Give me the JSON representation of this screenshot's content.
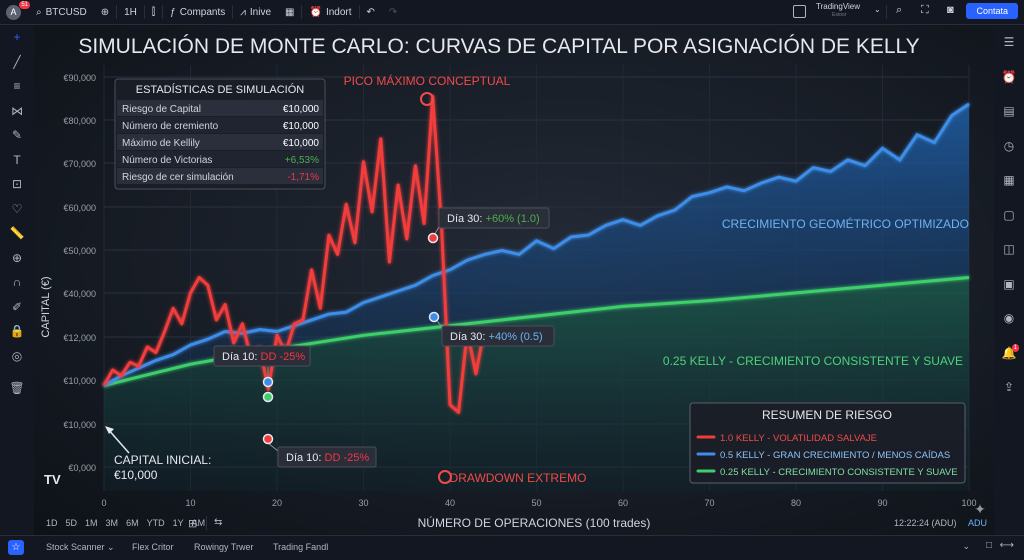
{
  "topbar": {
    "avatar": "A",
    "avatar_badge": "51",
    "symbol": "BTCUSD",
    "interval": "1H",
    "compare": "Compants",
    "indicators": "Inive",
    "alerts": "Indort",
    "tradingview": "TradingView",
    "tradingview_sub": "Estoor",
    "contact": "Contata"
  },
  "left_toolbar": [
    "crosshair-icon",
    "trend-line-icon",
    "fib-icon",
    "pattern-icon",
    "brush-icon",
    "text-icon",
    "measure-icon",
    "heart-icon",
    "ruler-icon",
    "zoom-icon",
    "magnet-icon",
    "lock-draw-icon",
    "lock-icon",
    "eye-icon",
    "trash-icon"
  ],
  "right_toolbar": [
    "watchlist-icon",
    "alarm-icon",
    "data-window-icon",
    "news-icon",
    "calendar-icon",
    "chat-icon",
    "ideas-icon",
    "streams-icon",
    "broadcast-icon",
    "notifications-icon",
    "hotlist-icon"
  ],
  "notif_badge": "1",
  "bottom": {
    "ranges": [
      "1D",
      "5D",
      "1M",
      "3M",
      "6M",
      "YTD",
      "1Y",
      "AM"
    ],
    "time": "12:22:24 (ADU)",
    "adu": "ADU",
    "panels": [
      "Stock Scanner",
      "Flex Critor",
      "Rowingy Trwer",
      "Trading Fandl"
    ]
  },
  "chart_data": {
    "type": "line",
    "title": "SIMULACIÓN DE MONTE CARLO: CURVAS DE CAPITAL POR ASIGNACIÓN DE KELLY",
    "xlabel": "NÚMERO DE OPERACIONES (100 trades)",
    "ylabel": "CAPITAL (€)",
    "xlim": [
      0,
      100
    ],
    "x_ticks": [
      0,
      10,
      20,
      30,
      40,
      50,
      60,
      70,
      80,
      90,
      100
    ],
    "y_tick_labels": [
      "€90,000",
      "€80,000",
      "€70,000",
      "€60,000",
      "€50,000",
      "€40,000",
      "€12,000",
      "€10,000",
      "€10,000",
      "€0,000"
    ],
    "series": [
      {
        "name": "1.0 KELLY - VOLATILIDAD SALVAJE",
        "color": "#f23c3c",
        "x": [
          0,
          1,
          2,
          3,
          4,
          5,
          6,
          7,
          8,
          9,
          10,
          11,
          12,
          13,
          14,
          15,
          16,
          17,
          18,
          19,
          20,
          21,
          22,
          23,
          24,
          25,
          26,
          27,
          28,
          29,
          30,
          31,
          32,
          33,
          34,
          35,
          36,
          37,
          38,
          39,
          40,
          41,
          42,
          43,
          44
        ],
        "y": [
          10000,
          14000,
          12500,
          16000,
          15000,
          20000,
          18500,
          24000,
          30000,
          26000,
          34000,
          38000,
          36000,
          27000,
          31000,
          21000,
          26000,
          17000,
          20000,
          9000,
          23000,
          18500,
          26000,
          27000,
          40000,
          30000,
          49000,
          44000,
          57000,
          47000,
          68000,
          55000,
          74000,
          42000,
          62000,
          48000,
          67000,
          52000,
          85000,
          52000,
          5000,
          3000,
          24000,
          13000,
          25000
        ]
      },
      {
        "name": "0.5 KELLY - GRAN CRECIMIENTO / MENOS CAÍDAS",
        "color": "#3d8ee8",
        "x": [
          0,
          2,
          4,
          6,
          8,
          10,
          12,
          14,
          16,
          18,
          20,
          22,
          24,
          26,
          28,
          30,
          32,
          34,
          36,
          38,
          40,
          42,
          44,
          46,
          48,
          50,
          52,
          54,
          56,
          58,
          60,
          62,
          64,
          66,
          68,
          70,
          72,
          74,
          76,
          78,
          80,
          82,
          84,
          86,
          88,
          90,
          92,
          94,
          96,
          98,
          100
        ],
        "y": [
          10000,
          12500,
          14500,
          16500,
          18000,
          20500,
          22000,
          24000,
          23500,
          24500,
          24000,
          25500,
          27000,
          28500,
          29000,
          31500,
          33000,
          34500,
          36000,
          38500,
          40000,
          42500,
          44000,
          45000,
          44000,
          47500,
          45500,
          48500,
          49000,
          51500,
          53000,
          51500,
          54000,
          55500,
          59000,
          60000,
          61500,
          60500,
          62500,
          64000,
          63000,
          66500,
          65500,
          68500,
          67000,
          71500,
          68500,
          75000,
          73000,
          80000,
          83000
        ]
      },
      {
        "name": "0.25 KELLY - CRECIMIENTO CONSISTENTE Y SUAVE",
        "color": "#3ecf6a",
        "x": [
          0,
          10,
          20,
          30,
          40,
          50,
          60,
          70,
          80,
          90,
          100
        ],
        "y": [
          10000,
          15500,
          19500,
          23000,
          25500,
          28000,
          30500,
          32000,
          34000,
          36000,
          38000
        ]
      }
    ],
    "annotations": {
      "stats_title": "ESTADÍSTICAS DE SIMULACIÓN",
      "stats": [
        {
          "label": "Riesgo de Capital",
          "value": "€10,000",
          "color": "#ffffff"
        },
        {
          "label": "Número de cremiento",
          "value": "€10,000",
          "color": "#ffffff"
        },
        {
          "label": "Máximo de Kellily",
          "value": "€10,000",
          "color": "#ffffff"
        },
        {
          "label": "Número de Victorias",
          "value": "+6,53%",
          "color": "#4caf50"
        },
        {
          "label": "Riesgo de cer simulación",
          "value": "-1,71%",
          "color": "#f23645"
        }
      ],
      "peak": "PICO MÁXIMO CONCEPTUAL",
      "drawdown": "DRAWDOWN EXTREMO",
      "initial_1": "CAPITAL INICIAL:",
      "initial_2": "€10,000",
      "dia30_red_label": "Día 30: ",
      "dia30_red_value": "+60% (1.0)",
      "dia30_blue_label": "Día 30: ",
      "dia30_blue_value": "+40% (0.5)",
      "dia10_top_label": "Día 10: ",
      "dia10_top_value": "DD -25%",
      "dia10_bot_label": "Día 10: ",
      "dia10_bot_value": "DD -25%",
      "blue_caption": "CRECIMIENTO GEOMÉTRICO OPTIMIZADO",
      "green_caption": "0.25 KELLY - CRECIMIENTO CONSISTENTE Y SUAVE",
      "legend_title": "RESUMEN DE RIESGO"
    }
  }
}
